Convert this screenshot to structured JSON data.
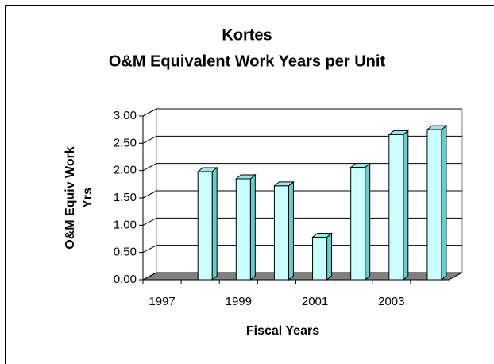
{
  "chart_data": {
    "type": "bar3d",
    "title": "Kortes",
    "subtitle": "O&M Equivalent Work Years per Unit",
    "xlabel": "Fiscal Years",
    "ylabel": [
      "O&M Equiv Work",
      "Yrs"
    ],
    "categories": [
      "1997",
      null,
      "1999",
      null,
      "2001",
      null,
      "2003",
      null
    ],
    "values": [
      null,
      1.98,
      1.85,
      1.72,
      0.78,
      2.06,
      2.66,
      2.75
    ],
    "color": "#ccffff",
    "ylim": [
      0,
      3
    ],
    "yticks": [
      {
        "value": 0,
        "label": "0.00"
      },
      {
        "value": 0.5,
        "label": "0.50"
      },
      {
        "value": 1,
        "label": "1.00"
      },
      {
        "value": 1.5,
        "label": "1.50"
      },
      {
        "value": 2,
        "label": "2.00"
      },
      {
        "value": 2.5,
        "label": "2.50"
      },
      {
        "value": 3,
        "label": "3.00"
      }
    ],
    "grid": true
  }
}
